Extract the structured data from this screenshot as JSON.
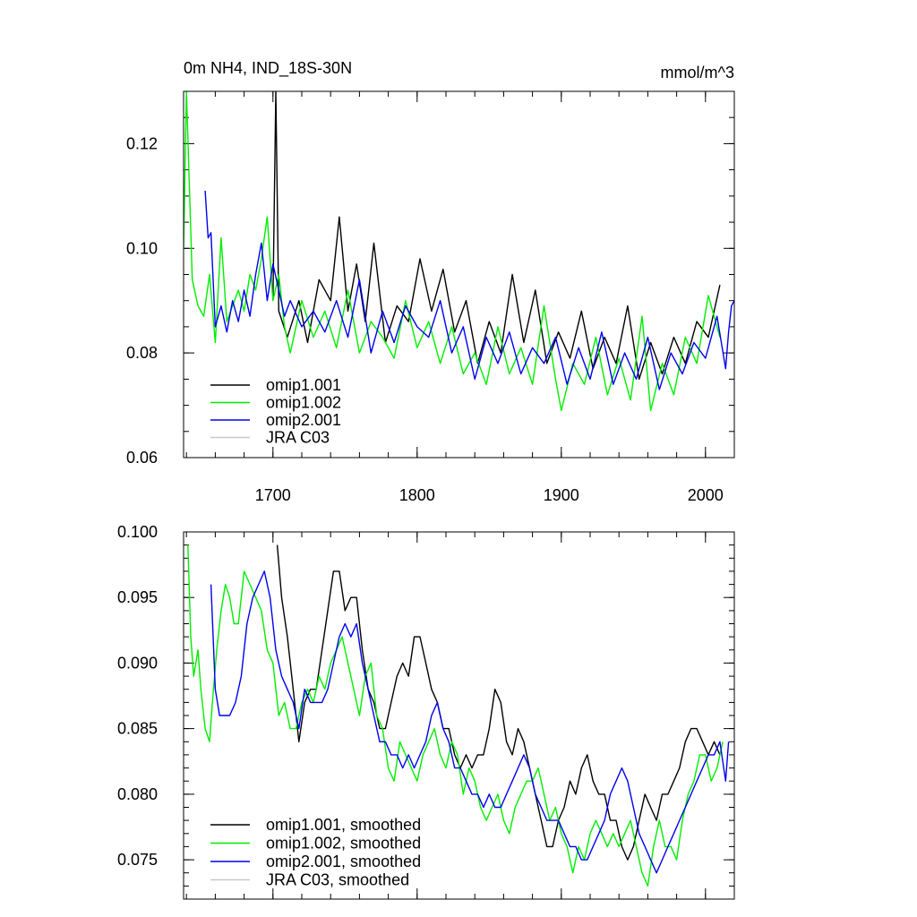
{
  "chart_data": [
    {
      "type": "line",
      "title": "0m NH4, IND_18S-30N",
      "units": "mmol/m^3",
      "xlim": [
        1638,
        2020
      ],
      "ylim": [
        0.06,
        0.13
      ],
      "x_ticks": [
        1700,
        1800,
        1900,
        2000
      ],
      "y_ticks": [
        0.06,
        0.08,
        0.1,
        0.12
      ],
      "y_tick_labels": [
        "0.06",
        "0.08",
        "0.10",
        "0.12"
      ],
      "legend_position": "bottom-left",
      "grid": false,
      "series": [
        {
          "name": "omip1.001",
          "color": "#000000",
          "x": [
            1700,
            1702,
            1704,
            1710,
            1718,
            1724,
            1732,
            1740,
            1746,
            1752,
            1758,
            1764,
            1770,
            1778,
            1786,
            1794,
            1802,
            1810,
            1818,
            1826,
            1834,
            1842,
            1850,
            1858,
            1866,
            1874,
            1882,
            1890,
            1898,
            1906,
            1914,
            1922,
            1930,
            1938,
            1946,
            1954,
            1962,
            1970,
            1978,
            1986,
            1994,
            2002,
            2010
          ],
          "y": [
            0.09,
            0.13,
            0.088,
            0.083,
            0.09,
            0.082,
            0.094,
            0.09,
            0.106,
            0.088,
            0.097,
            0.086,
            0.101,
            0.082,
            0.089,
            0.086,
            0.098,
            0.088,
            0.096,
            0.084,
            0.09,
            0.078,
            0.086,
            0.08,
            0.095,
            0.082,
            0.092,
            0.078,
            0.084,
            0.079,
            0.088,
            0.077,
            0.083,
            0.078,
            0.089,
            0.075,
            0.082,
            0.076,
            0.083,
            0.078,
            0.086,
            0.083,
            0.093
          ]
        },
        {
          "name": "omip1.002",
          "color": "#00ee00",
          "x": [
            1638,
            1640,
            1644,
            1648,
            1652,
            1656,
            1660,
            1664,
            1668,
            1672,
            1676,
            1680,
            1684,
            1688,
            1692,
            1696,
            1700,
            1704,
            1708,
            1712,
            1720,
            1728,
            1736,
            1744,
            1752,
            1760,
            1768,
            1776,
            1784,
            1792,
            1800,
            1808,
            1816,
            1824,
            1832,
            1840,
            1848,
            1856,
            1864,
            1872,
            1880,
            1888,
            1896,
            1900,
            1908,
            1916,
            1924,
            1932,
            1940,
            1948,
            1956,
            1962,
            1970,
            1978,
            1986,
            1994,
            2002,
            2010
          ],
          "y": [
            0.1,
            0.13,
            0.094,
            0.089,
            0.087,
            0.095,
            0.082,
            0.102,
            0.086,
            0.089,
            0.092,
            0.088,
            0.095,
            0.092,
            0.098,
            0.106,
            0.09,
            0.095,
            0.085,
            0.08,
            0.09,
            0.083,
            0.088,
            0.081,
            0.092,
            0.08,
            0.086,
            0.083,
            0.079,
            0.09,
            0.081,
            0.086,
            0.078,
            0.085,
            0.076,
            0.08,
            0.074,
            0.085,
            0.076,
            0.081,
            0.074,
            0.089,
            0.075,
            0.069,
            0.078,
            0.074,
            0.083,
            0.072,
            0.079,
            0.071,
            0.087,
            0.069,
            0.078,
            0.072,
            0.083,
            0.078,
            0.091,
            0.083
          ]
        },
        {
          "name": "omip2.001",
          "color": "#0000ee",
          "x": [
            1653,
            1655,
            1657,
            1660,
            1664,
            1668,
            1672,
            1676,
            1680,
            1684,
            1688,
            1692,
            1696,
            1700,
            1704,
            1708,
            1712,
            1720,
            1728,
            1736,
            1744,
            1752,
            1760,
            1768,
            1776,
            1784,
            1792,
            1800,
            1808,
            1816,
            1824,
            1832,
            1840,
            1848,
            1856,
            1864,
            1872,
            1880,
            1888,
            1896,
            1904,
            1912,
            1920,
            1928,
            1936,
            1944,
            1952,
            1960,
            1968,
            1976,
            1984,
            1992,
            2000,
            2008,
            2014,
            2016,
            2018,
            2020
          ],
          "y": [
            0.111,
            0.102,
            0.103,
            0.085,
            0.089,
            0.084,
            0.09,
            0.086,
            0.092,
            0.087,
            0.095,
            0.101,
            0.09,
            0.097,
            0.092,
            0.087,
            0.09,
            0.085,
            0.088,
            0.084,
            0.09,
            0.083,
            0.094,
            0.08,
            0.088,
            0.082,
            0.089,
            0.085,
            0.083,
            0.09,
            0.08,
            0.085,
            0.075,
            0.083,
            0.078,
            0.084,
            0.076,
            0.081,
            0.078,
            0.083,
            0.074,
            0.081,
            0.075,
            0.084,
            0.074,
            0.08,
            0.075,
            0.083,
            0.073,
            0.08,
            0.076,
            0.082,
            0.079,
            0.087,
            0.077,
            0.084,
            0.089,
            0.09
          ]
        },
        {
          "name": "JRA C03",
          "color": "#c8c8c8",
          "x": [],
          "y": []
        }
      ]
    },
    {
      "type": "line",
      "xlim": [
        1638,
        2020
      ],
      "ylim": [
        0.072,
        0.1
      ],
      "x_ticks": [
        1700,
        1800,
        1900,
        2000
      ],
      "y_ticks": [
        0.075,
        0.08,
        0.085,
        0.09,
        0.095,
        0.1
      ],
      "y_tick_labels": [
        "0.075",
        "0.080",
        "0.085",
        "0.090",
        "0.095",
        "0.100"
      ],
      "legend_position": "bottom-left",
      "grid": false,
      "series": [
        {
          "name": "omip1.001, smoothed",
          "color": "#000000",
          "x": [
            1703,
            1706,
            1710,
            1714,
            1718,
            1722,
            1726,
            1730,
            1734,
            1738,
            1742,
            1746,
            1750,
            1754,
            1758,
            1762,
            1766,
            1770,
            1774,
            1778,
            1782,
            1786,
            1790,
            1794,
            1798,
            1802,
            1806,
            1810,
            1814,
            1818,
            1822,
            1826,
            1830,
            1834,
            1838,
            1842,
            1846,
            1850,
            1854,
            1858,
            1862,
            1866,
            1870,
            1874,
            1878,
            1882,
            1886,
            1890,
            1894,
            1898,
            1902,
            1906,
            1910,
            1914,
            1918,
            1922,
            1926,
            1930,
            1934,
            1938,
            1942,
            1946,
            1950,
            1954,
            1958,
            1962,
            1966,
            1970,
            1974,
            1978,
            1982,
            1986,
            1990,
            1994,
            1998,
            2002,
            2006,
            2010
          ],
          "y": [
            0.099,
            0.095,
            0.092,
            0.088,
            0.084,
            0.087,
            0.088,
            0.088,
            0.091,
            0.094,
            0.097,
            0.097,
            0.094,
            0.095,
            0.095,
            0.091,
            0.088,
            0.087,
            0.085,
            0.085,
            0.087,
            0.089,
            0.09,
            0.089,
            0.092,
            0.092,
            0.09,
            0.088,
            0.087,
            0.085,
            0.085,
            0.083,
            0.082,
            0.083,
            0.082,
            0.083,
            0.083,
            0.085,
            0.088,
            0.087,
            0.084,
            0.083,
            0.085,
            0.084,
            0.082,
            0.08,
            0.078,
            0.076,
            0.076,
            0.078,
            0.079,
            0.081,
            0.08,
            0.082,
            0.083,
            0.081,
            0.08,
            0.08,
            0.078,
            0.078,
            0.076,
            0.075,
            0.076,
            0.078,
            0.08,
            0.079,
            0.078,
            0.08,
            0.08,
            0.081,
            0.082,
            0.084,
            0.085,
            0.085,
            0.084,
            0.083,
            0.084,
            0.083
          ]
        },
        {
          "name": "omip1.002, smoothed",
          "color": "#00ee00",
          "x": [
            1641,
            1643,
            1645,
            1648,
            1650,
            1653,
            1656,
            1658,
            1661,
            1664,
            1667,
            1670,
            1673,
            1676,
            1680,
            1684,
            1688,
            1692,
            1696,
            1700,
            1704,
            1708,
            1712,
            1716,
            1720,
            1724,
            1728,
            1732,
            1736,
            1740,
            1744,
            1748,
            1752,
            1756,
            1760,
            1764,
            1768,
            1772,
            1776,
            1780,
            1784,
            1788,
            1792,
            1796,
            1800,
            1804,
            1808,
            1812,
            1816,
            1820,
            1824,
            1828,
            1832,
            1836,
            1840,
            1844,
            1848,
            1852,
            1856,
            1860,
            1864,
            1868,
            1872,
            1876,
            1880,
            1884,
            1888,
            1892,
            1896,
            1900,
            1904,
            1908,
            1912,
            1916,
            1920,
            1924,
            1928,
            1932,
            1936,
            1940,
            1944,
            1948,
            1952,
            1956,
            1960,
            1964,
            1968,
            1972,
            1976,
            1980,
            1984,
            1988,
            1992,
            1996,
            2000,
            2004,
            2008,
            2012
          ],
          "y": [
            0.099,
            0.092,
            0.089,
            0.091,
            0.088,
            0.085,
            0.084,
            0.087,
            0.091,
            0.094,
            0.096,
            0.095,
            0.093,
            0.093,
            0.097,
            0.096,
            0.095,
            0.094,
            0.091,
            0.09,
            0.086,
            0.087,
            0.085,
            0.085,
            0.087,
            0.088,
            0.087,
            0.089,
            0.088,
            0.09,
            0.091,
            0.092,
            0.09,
            0.088,
            0.086,
            0.089,
            0.09,
            0.086,
            0.085,
            0.082,
            0.081,
            0.084,
            0.083,
            0.082,
            0.081,
            0.083,
            0.084,
            0.085,
            0.083,
            0.082,
            0.084,
            0.083,
            0.08,
            0.082,
            0.081,
            0.079,
            0.078,
            0.079,
            0.08,
            0.078,
            0.077,
            0.079,
            0.08,
            0.081,
            0.081,
            0.082,
            0.08,
            0.078,
            0.079,
            0.077,
            0.076,
            0.074,
            0.076,
            0.075,
            0.077,
            0.078,
            0.077,
            0.076,
            0.077,
            0.076,
            0.077,
            0.078,
            0.076,
            0.074,
            0.073,
            0.076,
            0.078,
            0.076,
            0.076,
            0.075,
            0.078,
            0.08,
            0.081,
            0.083,
            0.083,
            0.081,
            0.082,
            0.084
          ]
        },
        {
          "name": "omip2.001, smoothed",
          "color": "#0000ee",
          "x": [
            1657,
            1660,
            1663,
            1666,
            1670,
            1674,
            1678,
            1682,
            1686,
            1690,
            1694,
            1698,
            1702,
            1706,
            1710,
            1714,
            1718,
            1722,
            1726,
            1730,
            1734,
            1738,
            1742,
            1746,
            1750,
            1754,
            1758,
            1762,
            1766,
            1770,
            1774,
            1778,
            1782,
            1786,
            1790,
            1794,
            1798,
            1802,
            1806,
            1810,
            1814,
            1818,
            1822,
            1826,
            1830,
            1834,
            1838,
            1842,
            1846,
            1850,
            1854,
            1858,
            1862,
            1866,
            1870,
            1874,
            1878,
            1882,
            1886,
            1890,
            1894,
            1898,
            1902,
            1906,
            1910,
            1914,
            1918,
            1922,
            1926,
            1930,
            1934,
            1938,
            1942,
            1946,
            1950,
            1954,
            1958,
            1962,
            1966,
            1970,
            1974,
            1978,
            1982,
            1986,
            1990,
            1994,
            1998,
            2002,
            2006,
            2010,
            2014,
            2016
          ],
          "y": [
            0.096,
            0.088,
            0.086,
            0.086,
            0.086,
            0.087,
            0.089,
            0.093,
            0.095,
            0.096,
            0.097,
            0.095,
            0.091,
            0.089,
            0.088,
            0.087,
            0.085,
            0.088,
            0.087,
            0.087,
            0.087,
            0.088,
            0.09,
            0.092,
            0.093,
            0.092,
            0.093,
            0.09,
            0.088,
            0.086,
            0.084,
            0.084,
            0.083,
            0.083,
            0.082,
            0.083,
            0.082,
            0.083,
            0.084,
            0.086,
            0.087,
            0.085,
            0.084,
            0.082,
            0.082,
            0.081,
            0.08,
            0.08,
            0.079,
            0.08,
            0.079,
            0.079,
            0.08,
            0.081,
            0.082,
            0.083,
            0.082,
            0.08,
            0.079,
            0.078,
            0.078,
            0.078,
            0.077,
            0.076,
            0.076,
            0.075,
            0.075,
            0.076,
            0.077,
            0.078,
            0.08,
            0.081,
            0.082,
            0.081,
            0.079,
            0.077,
            0.076,
            0.075,
            0.074,
            0.075,
            0.076,
            0.077,
            0.078,
            0.079,
            0.08,
            0.081,
            0.082,
            0.083,
            0.083,
            0.084,
            0.081,
            0.084
          ]
        },
        {
          "name": "JRA C03, smoothed",
          "color": "#c8c8c8",
          "x": [],
          "y": []
        }
      ]
    }
  ]
}
